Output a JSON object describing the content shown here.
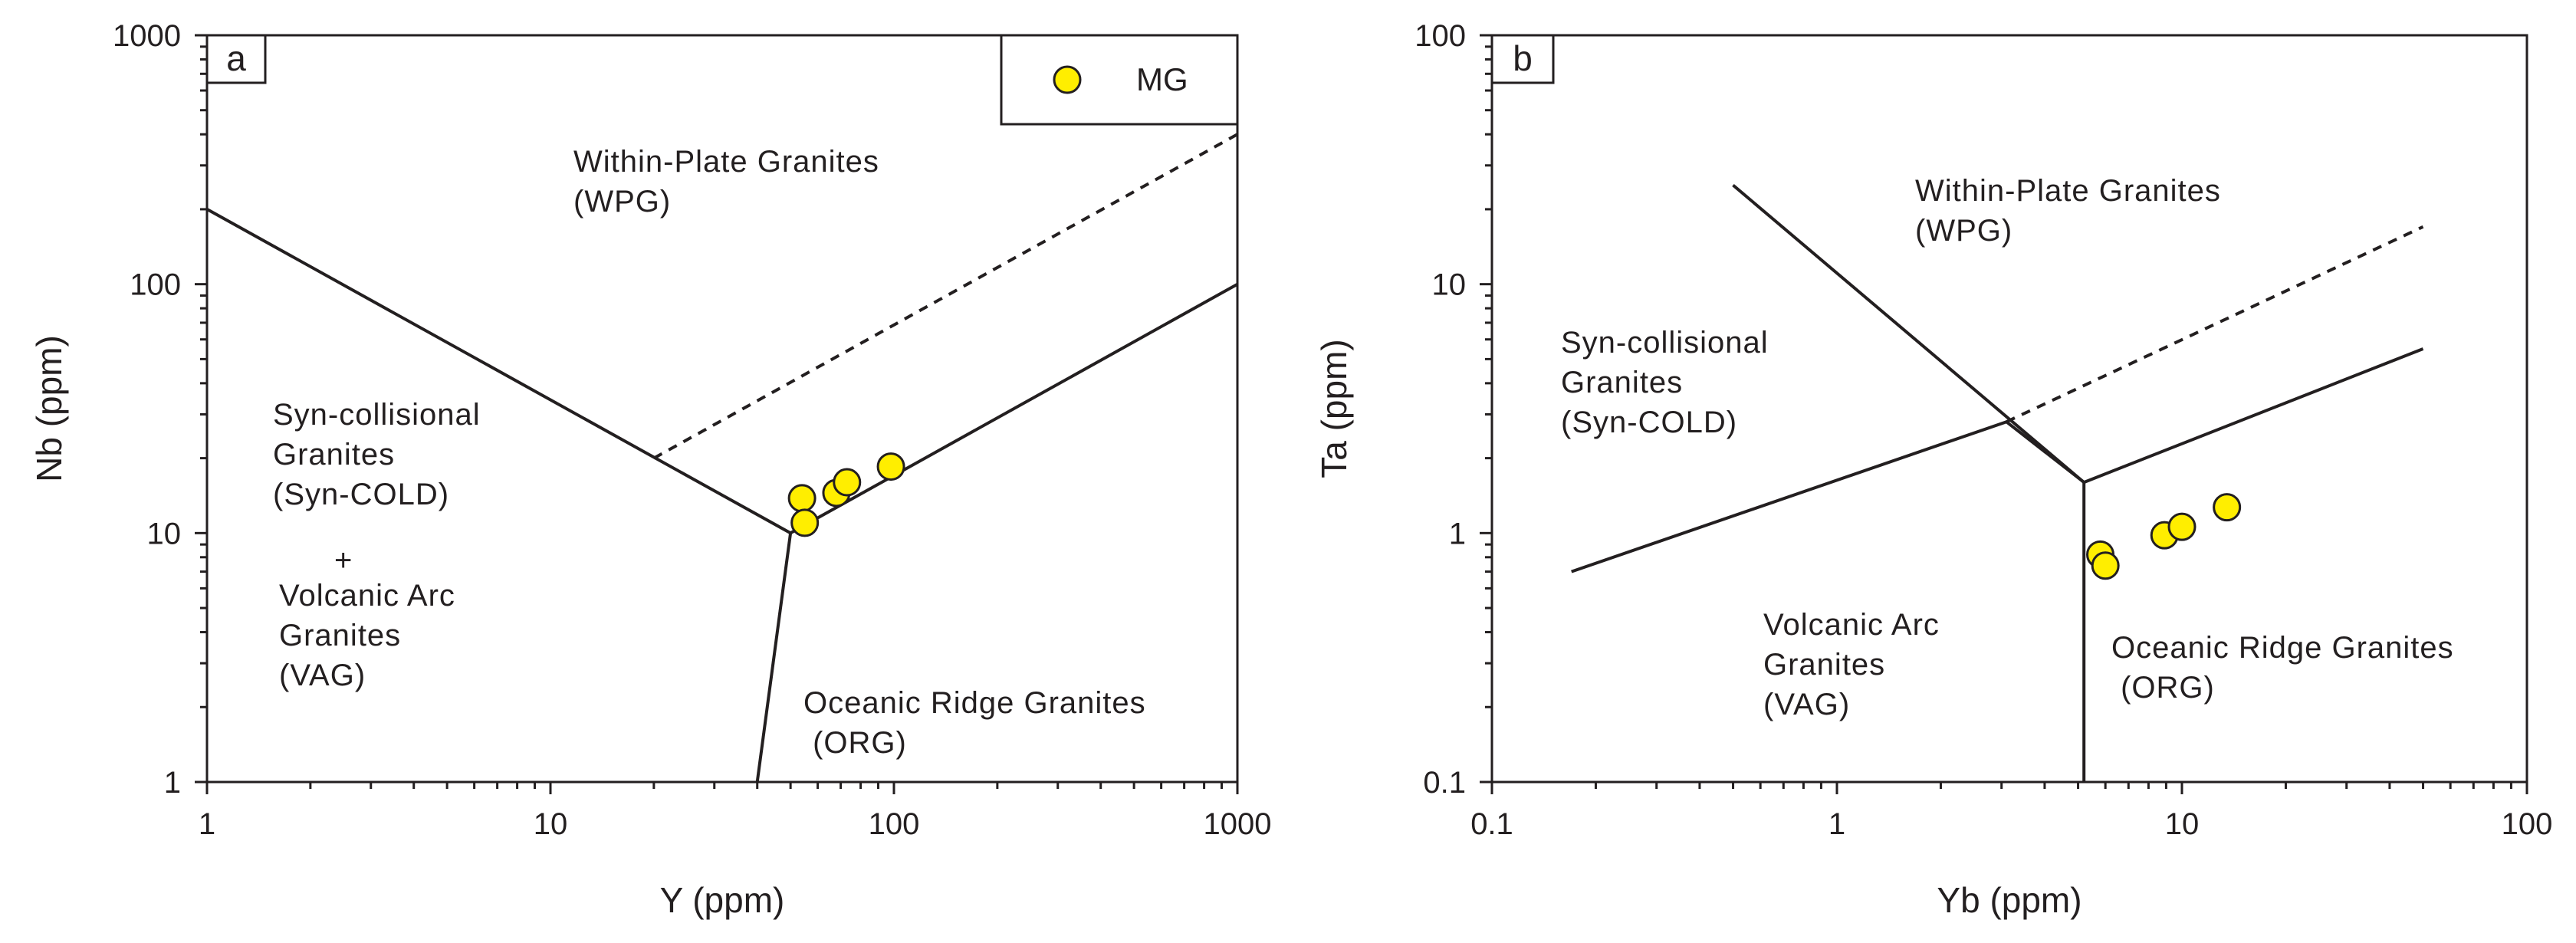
{
  "chart_data": [
    {
      "type": "scatter",
      "panel": "a",
      "xscale": "log",
      "yscale": "log",
      "xlim": [
        1,
        1000
      ],
      "ylim": [
        1,
        1000
      ],
      "xlabel": "Y (ppm)",
      "ylabel": "Nb (ppm)",
      "xticks": [
        "1",
        "10",
        "100",
        "1000"
      ],
      "yticks": [
        "1",
        "10",
        "100",
        "1000"
      ],
      "legend": {
        "position": "top-right",
        "label": "MG"
      },
      "series": [
        {
          "name": "MG",
          "color": "#ffee00",
          "points": [
            [
              54,
              13.8
            ],
            [
              55,
              11.0
            ],
            [
              68,
              14.5
            ],
            [
              73,
              16.0
            ],
            [
              98,
              18.5
            ]
          ]
        }
      ],
      "boundaries": [
        {
          "name": "VAG+syn-COLG / WPG",
          "style": "solid",
          "points": [
            [
              1,
              200
            ],
            [
              50,
              10
            ]
          ]
        },
        {
          "name": "VAG+syn-COLG / ORG",
          "style": "solid",
          "points": [
            [
              50,
              10
            ],
            [
              40,
              1
            ]
          ]
        },
        {
          "name": "WPG / ORG",
          "style": "solid",
          "points": [
            [
              50,
              10
            ],
            [
              1000,
              100
            ]
          ]
        },
        {
          "name": "WPG / ORG (dashed)",
          "style": "dashed",
          "points": [
            [
              20,
              20
            ],
            [
              1000,
              400
            ]
          ]
        }
      ],
      "fields": [
        {
          "id": "wpg",
          "lines": [
            "Within-Plate Granites",
            "(WPG)"
          ]
        },
        {
          "id": "syn",
          "lines": [
            "Syn-collisional",
            "Granites",
            "(Syn-COLD)"
          ]
        },
        {
          "id": "plus",
          "lines": [
            "+"
          ]
        },
        {
          "id": "vag",
          "lines": [
            "Volcanic Arc",
            "Granites",
            "(VAG)"
          ]
        },
        {
          "id": "org",
          "lines": [
            "Oceanic Ridge Granites",
            " (ORG)"
          ]
        }
      ]
    },
    {
      "type": "scatter",
      "panel": "b",
      "xscale": "log",
      "yscale": "log",
      "xlim": [
        0.1,
        100
      ],
      "ylim": [
        0.1,
        100
      ],
      "xlabel": "Yb (ppm)",
      "ylabel": "Ta (ppm)",
      "xticks": [
        "0.1",
        "1",
        "10",
        "100"
      ],
      "yticks": [
        "0.1",
        "1",
        "10",
        "100"
      ],
      "series": [
        {
          "name": "MG",
          "color": "#ffee00",
          "points": [
            [
              5.8,
              0.82
            ],
            [
              6.0,
              0.74
            ],
            [
              8.9,
              0.98
            ],
            [
              10.0,
              1.06
            ],
            [
              13.5,
              1.27
            ]
          ]
        }
      ],
      "boundaries": [
        {
          "name": "syn-COLG / VAG-WPG",
          "style": "solid",
          "points": [
            [
              0.17,
              0.7
            ],
            [
              3.1,
              2.8
            ],
            [
              5.2,
              1.6
            ]
          ]
        },
        {
          "name": "WPG / syn-COLG",
          "style": "solid",
          "points": [
            [
              0.5,
              25
            ],
            [
              5.2,
              1.6
            ]
          ]
        },
        {
          "name": "VAG / ORG",
          "style": "solid",
          "points": [
            [
              5.2,
              1.6
            ],
            [
              5.2,
              0.1
            ]
          ]
        },
        {
          "name": "WPG / ORG",
          "style": "solid",
          "points": [
            [
              5.2,
              1.6
            ],
            [
              50,
              5.5
            ]
          ]
        },
        {
          "name": "WPG / ORG (dashed)",
          "style": "dashed",
          "points": [
            [
              3.1,
              2.8
            ],
            [
              50,
              17
            ]
          ]
        }
      ],
      "fields": [
        {
          "id": "wpg",
          "lines": [
            "Within-Plate Granites",
            "(WPG)"
          ]
        },
        {
          "id": "syn",
          "lines": [
            "Syn-collisional",
            "Granites",
            "(Syn-COLD)"
          ]
        },
        {
          "id": "vag",
          "lines": [
            "Volcanic Arc",
            "Granites",
            "(VAG)"
          ]
        },
        {
          "id": "org",
          "lines": [
            "Oceanic Ridge Granites",
            " (ORG)"
          ]
        }
      ]
    }
  ]
}
